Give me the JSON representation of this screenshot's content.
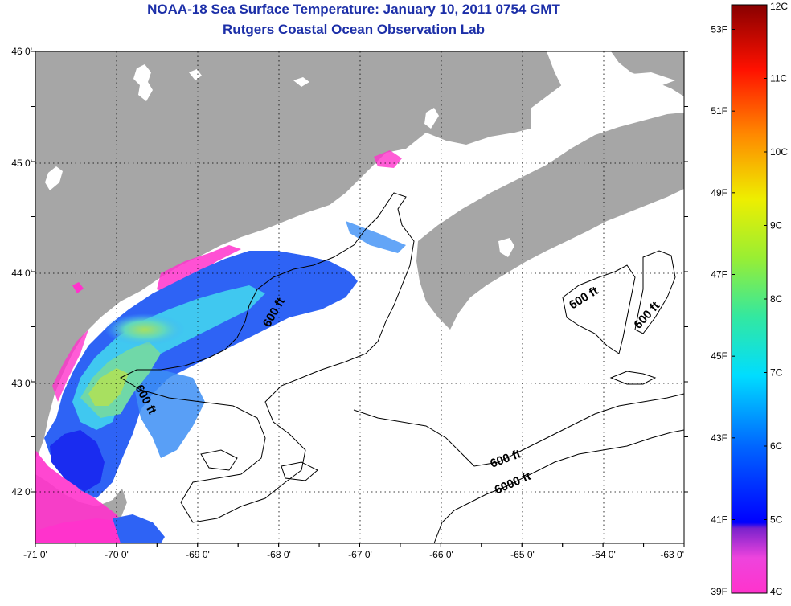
{
  "title": "NOAA-18 Sea Surface Temperature:  January 10, 2011 0754 GMT",
  "subtitle": "Rutgers Coastal Ocean Observation Lab",
  "lon_ticks": [
    "-71 0'",
    "-70 0'",
    "-69 0'",
    "-68 0'",
    "-67 0'",
    "-66 0'",
    "-65 0'",
    "-64 0'",
    "-63 0'"
  ],
  "lat_ticks": [
    "46 0'",
    "45 0'",
    "44 0'",
    "43 0'",
    "42 0'"
  ],
  "contour_labels": [
    "600 ft",
    "600 ft",
    "600 ft",
    "600 ft",
    "600 ft",
    "6000 ft"
  ],
  "colorbar": {
    "fahrenheit": [
      "53F",
      "51F",
      "49F",
      "47F",
      "45F",
      "43F",
      "41F",
      "39F"
    ],
    "celsius": [
      "12C",
      "11C",
      "10C",
      "9C",
      "8C",
      "7C",
      "6C",
      "5C",
      "4C"
    ]
  },
  "colors": {
    "land": "#a6a6a6",
    "ocean": "#ffffff",
    "title": "#1c2fa8"
  }
}
